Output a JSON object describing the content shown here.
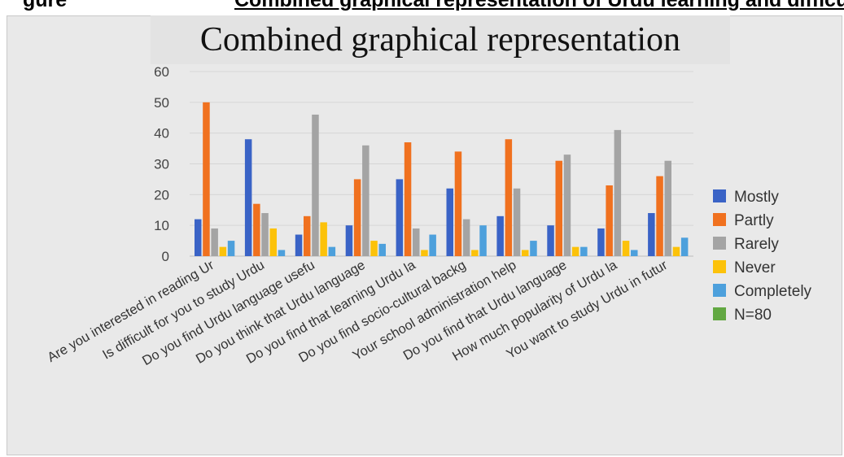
{
  "figure_heading": {
    "lead": "gure",
    "rest": "Combined graphical representation of Urdu learning and difficulty"
  },
  "colors": {
    "Mostly": "#3a63c6",
    "Partly": "#f0711f",
    "Rarely": "#a4a4a4",
    "Never": "#fcc20a",
    "Completely": "#4da0dc",
    "N=80": "#62a842"
  },
  "chart_data": {
    "type": "bar",
    "title": "Combined graphical representation",
    "ylim": [
      0,
      60
    ],
    "yticks": [
      0,
      10,
      20,
      30,
      40,
      50,
      60
    ],
    "grid": true,
    "legend_position": "right",
    "categories": [
      "Are you interested in reading Ur",
      "Is difficult for you to study Urdu",
      "Do you find Urdu language usefu",
      "Do you think that Urdu language",
      "Do you find that learning Urdu la",
      "Do you find socio-cultural backg",
      "Your school administration help",
      "Do you find that Urdu language",
      "How much popularity of Urdu la",
      "You want to study Urdu in futur"
    ],
    "series": [
      {
        "name": "Mostly",
        "values": [
          12,
          38,
          7,
          10,
          25,
          22,
          13,
          10,
          9,
          14
        ]
      },
      {
        "name": "Partly",
        "values": [
          50,
          17,
          13,
          25,
          37,
          34,
          38,
          31,
          23,
          26
        ]
      },
      {
        "name": "Rarely",
        "values": [
          9,
          14,
          46,
          36,
          9,
          12,
          22,
          33,
          41,
          31
        ]
      },
      {
        "name": "Never",
        "values": [
          3,
          9,
          11,
          5,
          2,
          2,
          2,
          3,
          5,
          3
        ]
      },
      {
        "name": "Completely",
        "values": [
          5,
          2,
          3,
          4,
          7,
          10,
          5,
          3,
          2,
          6
        ]
      },
      {
        "name": "N=80",
        "values": [
          0,
          0,
          0,
          0,
          0,
          0,
          0,
          0,
          0,
          0
        ]
      }
    ]
  }
}
